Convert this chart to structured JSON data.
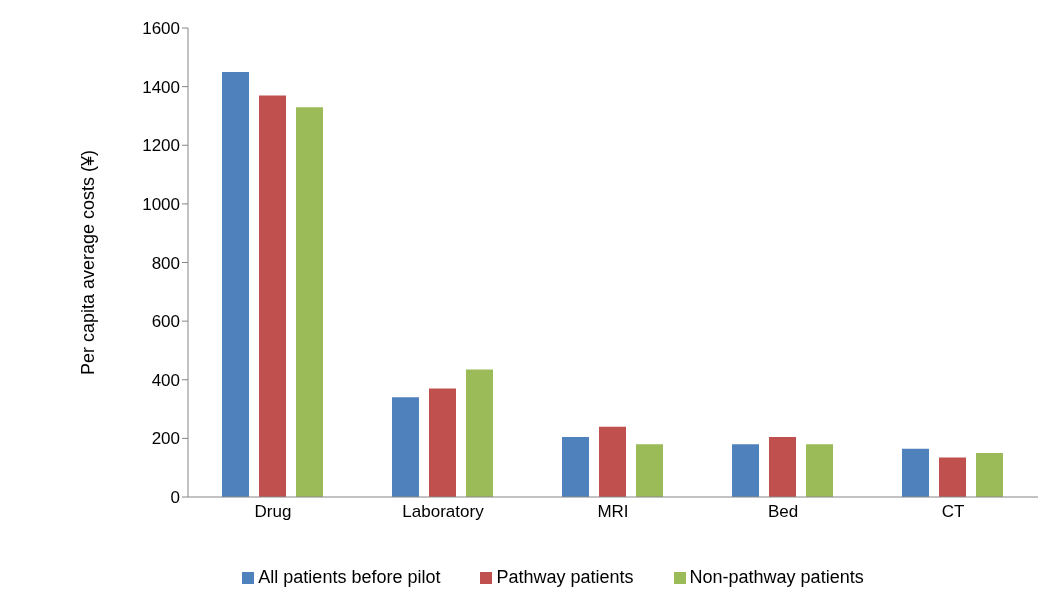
{
  "chart_data": {
    "type": "bar",
    "ylabel": "Per capita average costs (¥)",
    "categories": [
      "Drug",
      "Laboratory",
      "MRI",
      "Bed",
      "CT"
    ],
    "series": [
      {
        "name": "All patients before pilot",
        "color": "#4f81bd",
        "values": [
          1450,
          340,
          205,
          180,
          165
        ]
      },
      {
        "name": "Pathway patients",
        "color": "#c0504d",
        "values": [
          1370,
          370,
          240,
          205,
          135
        ]
      },
      {
        "name": "Non-pathway patients",
        "color": "#9bbb59",
        "values": [
          1330,
          435,
          180,
          180,
          150
        ]
      }
    ],
    "ylim": [
      0,
      1600
    ],
    "yticks": [
      0,
      200,
      400,
      600,
      800,
      1000,
      1200,
      1400,
      1600
    ],
    "grid": false,
    "legend": "bottom"
  }
}
